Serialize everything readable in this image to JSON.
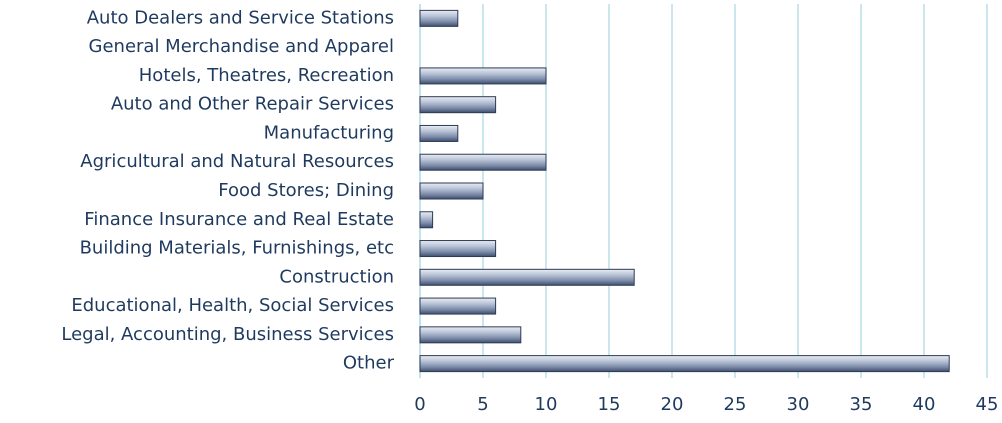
{
  "chart_data": {
    "type": "bar",
    "orientation": "horizontal",
    "categories": [
      "Auto Dealers and Service Stations",
      "General Merchandise and Apparel",
      "Hotels, Theatres, Recreation",
      "Auto and Other Repair Services",
      "Manufacturing",
      "Agricultural and Natural Resources",
      "Food Stores; Dining",
      "Finance Insurance and Real Estate",
      "Building Materials, Furnishings, etc",
      "Construction",
      "Educational, Health, Social Services",
      "Legal, Accounting, Business Services",
      "Other"
    ],
    "values": [
      3,
      0,
      10,
      6,
      3,
      10,
      5,
      1,
      6,
      17,
      6,
      8,
      42
    ],
    "color": "#8796b0",
    "xlim": [
      0,
      45
    ],
    "xticks": [
      0,
      5,
      10,
      15,
      20,
      25,
      30,
      35,
      40,
      45
    ],
    "grid": true
  }
}
